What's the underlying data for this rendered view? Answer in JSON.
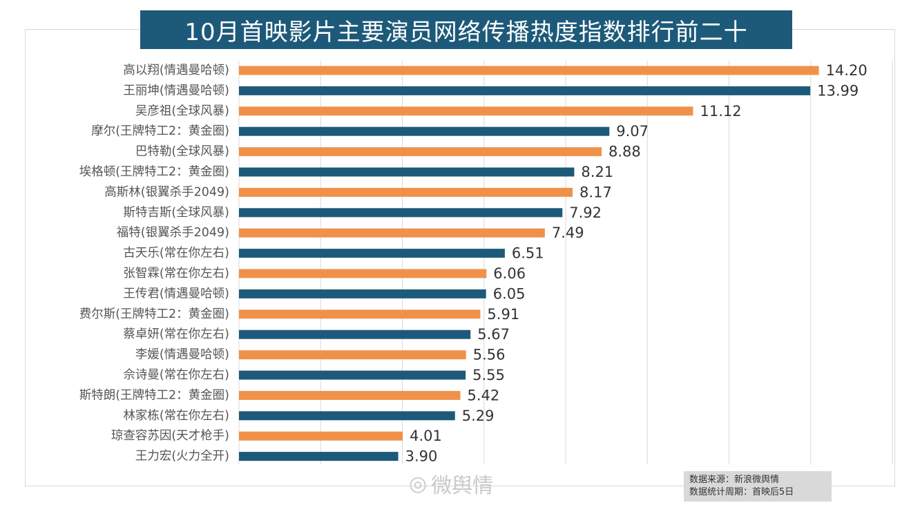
{
  "title": "10月首映影片主要演员网络传播热度指数排行前二十",
  "watermark": "微舆情",
  "source": {
    "line1": "数据来源：新浪微舆情",
    "line2": "数据统计周期：首映后5日"
  },
  "colors": {
    "orange": "#f0914a",
    "blue": "#1d5a7a",
    "title_bg": "#1d5a7a"
  },
  "chart_data": {
    "type": "bar",
    "orientation": "horizontal",
    "title": "10月首映影片主要演员网络传播热度指数排行前二十",
    "categories": [
      "高以翔(情遇曼哈顿)",
      "王丽坤(情遇曼哈顿)",
      "吴彦祖(全球风暴)",
      "摩尔(王牌特工2：黄金圈)",
      "巴特勒(全球风暴)",
      "埃格顿(王牌特工2：黄金圈)",
      "高斯林(银翼杀手2049)",
      "斯特吉斯(全球风暴)",
      "福特(银翼杀手2049)",
      "古天乐(常在你左右)",
      "张智霖(常在你左右)",
      "王传君(情遇曼哈顿)",
      "费尔斯(王牌特工2：黄金圈)",
      "蔡卓妍(常在你左右)",
      "李媛(情遇曼哈顿)",
      "佘诗曼(常在你左右)",
      "斯特朗(王牌特工2：黄金圈)",
      "林家栋(常在你左右)",
      "琼查容苏因(天才枪手)",
      "王力宏(火力全开)"
    ],
    "values": [
      14.2,
      13.99,
      11.12,
      9.07,
      8.88,
      8.21,
      8.17,
      7.92,
      7.49,
      6.51,
      6.06,
      6.05,
      5.91,
      5.67,
      5.56,
      5.55,
      5.42,
      5.29,
      4.01,
      3.9
    ],
    "value_labels": [
      "14.20",
      "13.99",
      "11.12",
      "9.07",
      "8.88",
      "8.21",
      "8.17",
      "7.92",
      "7.49",
      "6.51",
      "6.06",
      "6.05",
      "5.91",
      "5.67",
      "5.56",
      "5.55",
      "5.42",
      "5.29",
      "4.01",
      "3.90"
    ],
    "bar_colors": [
      "orange",
      "blue",
      "orange",
      "blue",
      "orange",
      "blue",
      "orange",
      "blue",
      "orange",
      "blue",
      "orange",
      "blue",
      "orange",
      "blue",
      "orange",
      "blue",
      "orange",
      "blue",
      "orange",
      "blue"
    ],
    "xlim": [
      0,
      16
    ],
    "grid_step": 2,
    "grid": true,
    "legend": false
  }
}
